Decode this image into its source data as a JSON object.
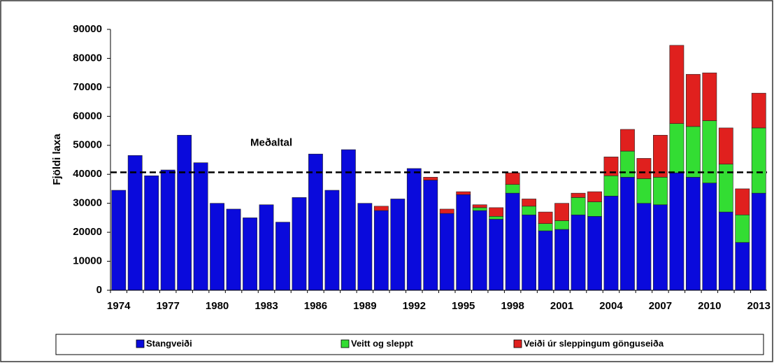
{
  "chart_data": {
    "type": "stacked_bar",
    "y_label": "Fjöldi laxa",
    "categories": [
      "1974",
      null,
      null,
      "1977",
      null,
      null,
      "1980",
      null,
      null,
      "1983",
      null,
      null,
      "1986",
      null,
      null,
      "1989",
      null,
      null,
      "1992",
      null,
      null,
      "1995",
      null,
      null,
      "1998",
      null,
      null,
      "2001",
      null,
      null,
      "2004",
      null,
      null,
      "2007",
      null,
      null,
      "2010",
      null,
      null,
      "2013"
    ],
    "series": [
      {
        "name": "Stangveiði",
        "color": "#0a0adc",
        "values": [
          34500,
          46500,
          39500,
          41500,
          53500,
          44000,
          30000,
          28000,
          25000,
          29500,
          23500,
          32000,
          47000,
          34500,
          48500,
          30000,
          27500,
          31500,
          42000,
          38000,
          26500,
          33000,
          27500,
          24500,
          33500,
          26000,
          20500,
          21000,
          26000,
          25500,
          32500,
          39000,
          30000,
          29500,
          40500,
          39000,
          37000,
          27000,
          16500,
          33500
        ]
      },
      {
        "name": "Veitt og sleppt",
        "color": "#33dd33",
        "values": [
          0,
          0,
          0,
          0,
          0,
          0,
          0,
          0,
          0,
          0,
          0,
          0,
          0,
          0,
          0,
          0,
          0,
          0,
          0,
          0,
          0,
          0,
          1000,
          1000,
          3000,
          3000,
          2500,
          3000,
          6000,
          5000,
          7000,
          9000,
          8500,
          9500,
          17000,
          17500,
          21500,
          16500,
          9500,
          22500
        ]
      },
      {
        "name": "Veiði úr sleppingum gönguseiða",
        "color": "#e0201e",
        "values": [
          0,
          0,
          0,
          0,
          0,
          0,
          0,
          0,
          0,
          0,
          0,
          0,
          0,
          0,
          0,
          0,
          1500,
          0,
          0,
          1000,
          1500,
          1000,
          1000,
          3000,
          4000,
          2500,
          4000,
          6000,
          1500,
          3500,
          6500,
          7500,
          7000,
          14500,
          27000,
          18000,
          16500,
          12500,
          9000,
          12000
        ]
      }
    ],
    "reference_line": {
      "value": 40700,
      "label": "Meðaltal"
    },
    "ylim": [
      0,
      90000
    ],
    "yticks": [
      0,
      10000,
      20000,
      30000,
      40000,
      50000,
      60000,
      70000,
      80000,
      90000
    ],
    "legend": "bottom"
  }
}
